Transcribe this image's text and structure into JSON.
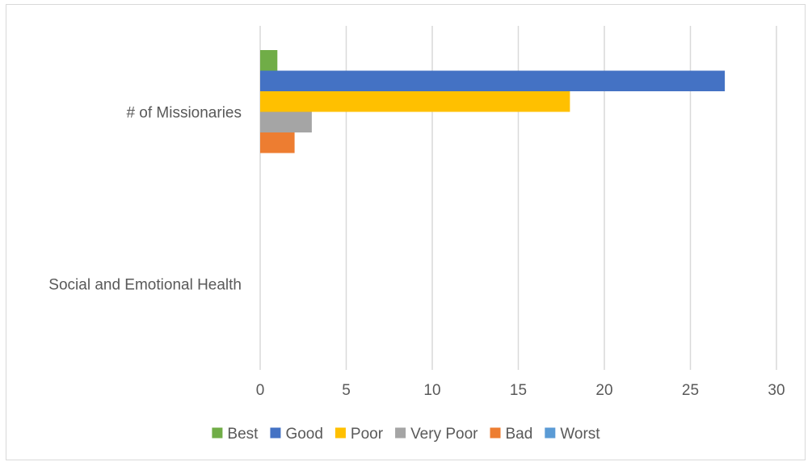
{
  "chart_data": {
    "type": "bar",
    "orientation": "horizontal",
    "categories": [
      "# of Missionaries",
      "Social and Emotional Health"
    ],
    "series": [
      {
        "name": "Best",
        "color": "#70ad47",
        "values": [
          1,
          null
        ]
      },
      {
        "name": "Good",
        "color": "#4472c4",
        "values": [
          27,
          null
        ]
      },
      {
        "name": "Poor",
        "color": "#ffc000",
        "values": [
          18,
          null
        ]
      },
      {
        "name": "Very Poor",
        "color": "#a5a5a5",
        "values": [
          3,
          null
        ]
      },
      {
        "name": "Bad",
        "color": "#ed7d31",
        "values": [
          2,
          null
        ]
      },
      {
        "name": "Worst",
        "color": "#5b9bd5",
        "values": [
          null,
          null
        ]
      }
    ],
    "x_ticks": [
      "0",
      "5",
      "10",
      "15",
      "20",
      "25",
      "30"
    ],
    "xlim": [
      0,
      30
    ],
    "grid": true,
    "legend_position": "bottom",
    "title": "",
    "xlabel": "",
    "ylabel": ""
  }
}
